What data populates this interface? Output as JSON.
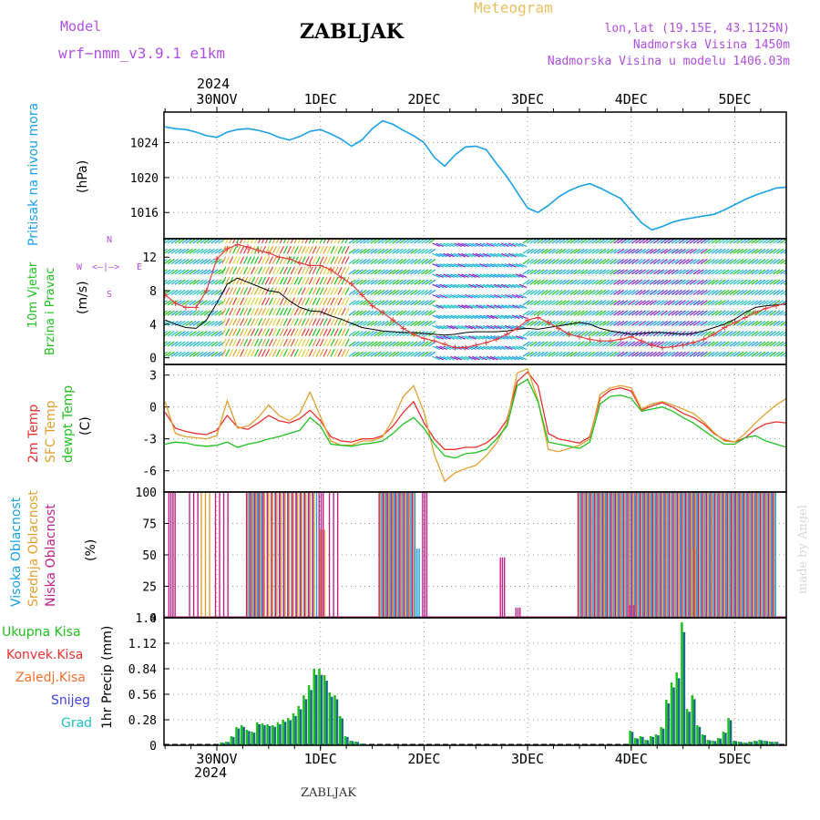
{
  "header": {
    "model_label": "Model",
    "model_name": "wrf−nmm_v3.9.1 e1km",
    "station_title": "ZABLJAK",
    "meteogram_label": "Meteogram",
    "lonlat": "lon,lat (19.15E, 43.1125N)",
    "altitude": "Nadmorska Visina 1450m",
    "model_altitude": "Nadmorska Visina u modelu 1406.03m",
    "footer_station": "ZABLJAK",
    "watermark": "made by Angel"
  },
  "time_axis": {
    "top_year": "2024",
    "bottom_year": "2024",
    "labels": [
      "30NOV",
      "1DEC",
      "2DEC",
      "3DEC",
      "4DEC",
      "5DEC"
    ]
  },
  "colors": {
    "pressure": "#1aa0e8",
    "wind_speed": "#000000",
    "wind_gust": "#e04040",
    "temp_2m": "#e83030",
    "temp_sfc": "#e0a030",
    "dewpoint": "#20c020",
    "cloud_high": "#1aa0e8",
    "cloud_mid": "#e0a030",
    "cloud_low": "#c0208a",
    "precip_total": "#20c020",
    "precip_conv": "#e83030",
    "precip_frz": "#f07030",
    "precip_snow": "#4040e0",
    "precip_hail": "#20c0c0"
  },
  "chart_data": [
    {
      "type": "line",
      "panel": "pressure",
      "ylabel": "Pritisak na nivou mora",
      "unit": "(hPa)",
      "yticks": [
        1016,
        1020,
        1024
      ],
      "ylim": [
        1013,
        1027.5
      ],
      "x_days": [
        0,
        0.1,
        0.2,
        0.3,
        0.4,
        0.5,
        0.6,
        0.7,
        0.8,
        0.9,
        1,
        1.1,
        1.2,
        1.3,
        1.4,
        1.5,
        1.6,
        1.7,
        1.8,
        1.9,
        2,
        2.1,
        2.2,
        2.3,
        2.4,
        2.5,
        2.6,
        2.7,
        2.8,
        2.9,
        3,
        3.1,
        3.2,
        3.3,
        3.4,
        3.5,
        3.6,
        3.7,
        3.8,
        3.9,
        4,
        4.1,
        4.2,
        4.3,
        4.4,
        4.5,
        4.6,
        4.7,
        4.8,
        4.9,
        5,
        5.1,
        5.2,
        5.3,
        5.4,
        5.5,
        5.6,
        5.7,
        5.8,
        5.9,
        6
      ],
      "series": [
        {
          "values": [
            1025.8,
            1025.6,
            1025.5,
            1025.2,
            1024.8,
            1024.6,
            1025.2,
            1025.5,
            1025.6,
            1025.4,
            1025.1,
            1024.6,
            1024.3,
            1024.7,
            1025.3,
            1025.5,
            1025.0,
            1024.4,
            1023.6,
            1024.3,
            1025.6,
            1026.5,
            1026.1,
            1025.4,
            1024.8,
            1024.0,
            1022.3,
            1021.3,
            1022.6,
            1023.5,
            1023.6,
            1023.2,
            1021.6,
            1020.1,
            1018.3,
            1016.5,
            1016.0,
            1016.8,
            1017.8,
            1018.5,
            1019.0,
            1019.3,
            1018.8,
            1018.2,
            1017.6,
            1016.2,
            1014.8,
            1014.0,
            1014.4,
            1014.9,
            1015.2,
            1015.4,
            1015.6,
            1015.8,
            1016.3,
            1016.9,
            1017.5,
            1018.0,
            1018.4,
            1018.8,
            1018.9
          ]
        }
      ]
    },
    {
      "type": "line",
      "panel": "wind",
      "ylabel": "10m Vjetar Brzina i Pravac",
      "unit": "(m/s)",
      "compass_labels": [
        "N",
        "W",
        "E",
        "S"
      ],
      "yticks": [
        0,
        4,
        8,
        12
      ],
      "ylim": [
        -0.8,
        14.2
      ],
      "x_days": [
        0,
        0.1,
        0.2,
        0.3,
        0.4,
        0.5,
        0.6,
        0.7,
        0.8,
        0.9,
        1,
        1.1,
        1.2,
        1.3,
        1.4,
        1.5,
        1.6,
        1.7,
        1.8,
        1.9,
        2,
        2.1,
        2.2,
        2.3,
        2.4,
        2.5,
        2.6,
        2.7,
        2.8,
        2.9,
        3,
        3.1,
        3.2,
        3.3,
        3.4,
        3.5,
        3.6,
        3.7,
        3.8,
        3.9,
        4,
        4.1,
        4.2,
        4.3,
        4.4,
        4.5,
        4.6,
        4.7,
        4.8,
        4.9,
        5,
        5.1,
        5.2,
        5.3,
        5.4,
        5.5,
        5.6,
        5.7,
        5.8,
        5.9,
        6
      ],
      "series": [
        {
          "name": "speed",
          "values": [
            4.5,
            4.0,
            3.6,
            3.5,
            4.5,
            6.5,
            8.8,
            9.5,
            9.0,
            8.5,
            8.0,
            7.8,
            6.8,
            6.0,
            5.6,
            5.5,
            5.0,
            4.6,
            4.1,
            3.6,
            3.4,
            3.2,
            3.1,
            3.0,
            3.0,
            2.9,
            2.8,
            2.7,
            2.8,
            3.0,
            3.1,
            3.1,
            3.1,
            3.2,
            3.4,
            3.5,
            3.4,
            3.6,
            3.8,
            4.0,
            4.2,
            4.0,
            3.5,
            3.2,
            3.0,
            2.8,
            2.9,
            3.0,
            3.0,
            2.9,
            2.8,
            2.9,
            3.2,
            3.6,
            4.0,
            4.6,
            5.4,
            6.0,
            6.2,
            6.3,
            6.4
          ]
        },
        {
          "name": "gust",
          "values": [
            7.5,
            6.5,
            6.0,
            6.0,
            8.0,
            11.8,
            13.0,
            13.5,
            13.2,
            12.8,
            12.5,
            12.0,
            11.8,
            11.3,
            11.0,
            11.0,
            10.5,
            9.6,
            8.8,
            7.5,
            6.2,
            5.4,
            4.5,
            3.5,
            2.8,
            2.3,
            2.0,
            1.6,
            1.2,
            1.2,
            1.5,
            1.8,
            2.2,
            2.8,
            3.5,
            4.5,
            4.8,
            4.2,
            3.5,
            2.8,
            2.5,
            2.2,
            2.0,
            2.0,
            2.2,
            2.5,
            2.0,
            1.5,
            1.2,
            1.3,
            1.5,
            1.8,
            2.2,
            2.8,
            3.6,
            4.2,
            4.8,
            5.4,
            5.9,
            6.2,
            6.5
          ]
        }
      ]
    },
    {
      "type": "line",
      "panel": "temperature",
      "ylabel_lines": [
        "2m Temp",
        "SFC Temp",
        "dewpt Temp"
      ],
      "unit": "(C)",
      "yticks": [
        -6,
        -3,
        0,
        3
      ],
      "ylim": [
        -8,
        4
      ],
      "x_days": [
        0,
        0.1,
        0.2,
        0.3,
        0.4,
        0.5,
        0.6,
        0.7,
        0.8,
        0.9,
        1,
        1.1,
        1.2,
        1.3,
        1.4,
        1.5,
        1.6,
        1.7,
        1.8,
        1.9,
        2,
        2.1,
        2.2,
        2.3,
        2.4,
        2.5,
        2.6,
        2.7,
        2.8,
        2.9,
        3,
        3.1,
        3.2,
        3.3,
        3.4,
        3.5,
        3.6,
        3.7,
        3.8,
        3.9,
        4,
        4.1,
        4.2,
        4.3,
        4.4,
        4.5,
        4.6,
        4.7,
        4.8,
        4.9,
        5,
        5.1,
        5.2,
        5.3,
        5.4,
        5.5,
        5.6,
        5.7,
        5.8,
        5.9,
        6
      ],
      "series": [
        {
          "name": "2m Temp",
          "values": [
            -0.5,
            -2.0,
            -2.3,
            -2.5,
            -2.6,
            -2.2,
            -0.8,
            -1.9,
            -2.1,
            -1.5,
            -0.8,
            -1.3,
            -1.5,
            -1.1,
            -0.3,
            -1.3,
            -2.8,
            -3.2,
            -3.3,
            -3.0,
            -3.0,
            -2.7,
            -1.8,
            -0.5,
            0.5,
            -1.5,
            -3.0,
            -4.0,
            -4.0,
            -3.8,
            -3.8,
            -3.4,
            -2.6,
            -1.2,
            2.4,
            3.3,
            2.0,
            -2.5,
            -3.0,
            -3.2,
            -3.4,
            -2.8,
            0.8,
            1.6,
            1.8,
            1.5,
            -0.3,
            0.1,
            0.4,
            0.0,
            -0.6,
            -1.0,
            -1.6,
            -2.5,
            -3.1,
            -3.3,
            -2.9,
            -2.1,
            -1.6,
            -1.4,
            -1.5
          ]
        },
        {
          "name": "SFC Temp",
          "values": [
            0.5,
            -2.5,
            -2.8,
            -2.9,
            -3.0,
            -2.7,
            0.6,
            -2.0,
            -1.8,
            -1.0,
            0.2,
            -0.8,
            -1.3,
            -0.6,
            1.4,
            -0.9,
            -3.2,
            -3.6,
            -3.6,
            -3.2,
            -3.2,
            -2.8,
            -1.2,
            1.0,
            2.0,
            -0.5,
            -4.5,
            -7.0,
            -6.2,
            -5.8,
            -5.5,
            -4.6,
            -3.4,
            -1.5,
            3.2,
            3.6,
            0.6,
            -4.0,
            -4.2,
            -3.9,
            -3.6,
            -3.0,
            1.2,
            1.8,
            2.0,
            1.8,
            -0.2,
            0.3,
            0.5,
            0.2,
            -0.2,
            -0.6,
            -1.4,
            -2.4,
            -3.2,
            -3.3,
            -2.5,
            -1.5,
            -0.6,
            0.2,
            0.8
          ]
        },
        {
          "name": "dewpt Temp",
          "values": [
            -3.5,
            -3.3,
            -3.4,
            -3.6,
            -3.7,
            -3.6,
            -3.3,
            -3.8,
            -3.5,
            -3.3,
            -3.0,
            -2.8,
            -2.5,
            -2.2,
            -1.0,
            -1.8,
            -3.5,
            -3.6,
            -3.7,
            -3.5,
            -3.4,
            -3.2,
            -2.5,
            -1.6,
            -1.0,
            -2.0,
            -3.5,
            -4.6,
            -4.8,
            -4.4,
            -4.3,
            -4.0,
            -3.0,
            -1.8,
            2.0,
            2.6,
            0.5,
            -3.3,
            -3.5,
            -3.7,
            -3.9,
            -3.3,
            0.3,
            1.0,
            1.1,
            0.8,
            -0.4,
            -0.2,
            0.0,
            -0.4,
            -1.0,
            -1.5,
            -2.2,
            -2.9,
            -3.5,
            -3.5,
            -2.9,
            -2.7,
            -3.2,
            -3.5,
            -3.8
          ]
        }
      ]
    },
    {
      "type": "bar",
      "panel": "clouds",
      "ylabel_lines": [
        "Visoka Oblacnost",
        "Srednja Oblacnost",
        "Niska Oblacnost"
      ],
      "unit": "(%)",
      "yticks": [
        0,
        25,
        50,
        75,
        100
      ],
      "ylim": [
        0,
        100
      ],
      "segments": [
        {
          "name": "Visoka Oblacnost",
          "ranges": [
            [
              0.8,
              0.95,
              100
            ],
            [
              1.05,
              1.45,
              100
            ],
            [
              2.08,
              2.42,
              100
            ],
            [
              2.4,
              2.45,
              55
            ],
            [
              4.0,
              5.9,
              100
            ]
          ]
        },
        {
          "name": "Srednja Oblacnost",
          "ranges": [
            [
              0.35,
              0.45,
              100
            ],
            [
              0.8,
              1.45,
              100
            ],
            [
              1.5,
              1.55,
              70
            ],
            [
              2.08,
              2.4,
              100
            ],
            [
              4.0,
              5.9,
              100
            ],
            [
              5.08,
              5.12,
              55
            ]
          ]
        },
        {
          "name": "Niska Oblacnost",
          "ranges": [
            [
              0.05,
              0.12,
              100
            ],
            [
              0.25,
              0.35,
              100
            ],
            [
              0.5,
              0.65,
              100
            ],
            [
              0.8,
              1.45,
              100
            ],
            [
              1.5,
              1.55,
              100
            ],
            [
              1.6,
              1.7,
              100
            ],
            [
              2.08,
              2.42,
              100
            ],
            [
              2.5,
              2.55,
              100
            ],
            [
              3.25,
              3.3,
              48
            ],
            [
              3.4,
              3.45,
              8
            ],
            [
              4.5,
              4.55,
              10
            ],
            [
              4.0,
              5.9,
              100
            ]
          ]
        }
      ]
    },
    {
      "type": "bar",
      "panel": "precipitation",
      "ylabel": "1hr Precip",
      "unit": "(mm)",
      "legend": [
        "Ukupna Kisa",
        "Konvek.Kisa",
        "Zaledj.Kisa",
        "Snijeg",
        "Grad"
      ],
      "yticks": [
        0,
        0.28,
        0.56,
        0.84,
        1.12,
        1.4
      ],
      "ylim": [
        0,
        1.4
      ],
      "x_days": [
        0.55,
        0.6,
        0.65,
        0.7,
        0.75,
        0.8,
        0.85,
        0.9,
        0.95,
        1.0,
        1.05,
        1.1,
        1.15,
        1.2,
        1.25,
        1.3,
        1.35,
        1.4,
        1.45,
        1.5,
        1.55,
        1.6,
        1.65,
        1.7,
        1.75,
        1.8,
        1.85,
        1.9,
        1.95,
        2.0,
        2.05,
        2.1,
        2.15,
        2.2,
        2.25,
        2.3,
        2.35,
        2.4,
        2.45,
        4.5,
        4.55,
        4.6,
        4.65,
        4.7,
        4.75,
        4.8,
        4.85,
        4.9,
        4.95,
        5.0,
        5.05,
        5.1,
        5.15,
        5.2,
        5.25,
        5.3,
        5.35,
        5.4,
        5.45,
        5.5,
        5.55,
        5.6,
        5.65,
        5.7,
        5.75,
        5.8,
        5.85,
        5.9
      ],
      "values": [
        0.03,
        0.04,
        0.1,
        0.2,
        0.22,
        0.17,
        0.15,
        0.25,
        0.24,
        0.23,
        0.22,
        0.25,
        0.28,
        0.3,
        0.35,
        0.43,
        0.55,
        0.66,
        0.84,
        0.84,
        0.77,
        0.58,
        0.55,
        0.32,
        0.1,
        0.05,
        0.04,
        0.02,
        0.01,
        0.0,
        0.0,
        0.0,
        0.0,
        0.0,
        0.0,
        0.0,
        0.0,
        0.0,
        0.0,
        0.16,
        0.08,
        0.1,
        0.06,
        0.1,
        0.12,
        0.2,
        0.5,
        0.69,
        0.8,
        1.35,
        0.4,
        0.55,
        0.22,
        0.12,
        0.06,
        0.05,
        0.08,
        0.15,
        0.3,
        0.05,
        0.04,
        0.03,
        0.04,
        0.05,
        0.06,
        0.05,
        0.04,
        0.04
      ]
    }
  ]
}
